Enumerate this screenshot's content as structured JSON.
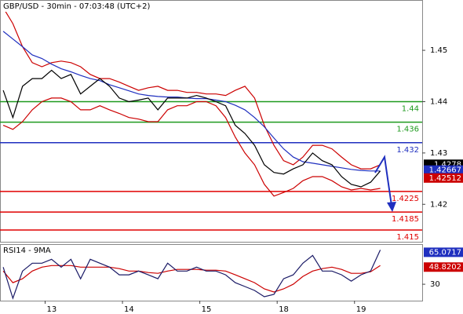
{
  "chart_data": [
    {
      "type": "line",
      "title": "GBP/USD - 30min - 07:03:48 (UTC+2)",
      "x": [
        -13,
        -10,
        -7,
        -4,
        -1,
        2,
        5,
        8,
        11,
        14,
        17,
        20,
        23,
        26,
        29,
        32,
        35,
        38,
        41,
        44,
        47,
        50,
        53,
        56,
        59,
        62,
        65,
        68,
        71,
        74,
        77,
        80,
        83,
        86,
        89,
        92,
        95,
        98,
        101,
        104
      ],
      "xlim": [
        -14,
        117
      ],
      "ylim": [
        1.4127,
        1.4598
      ],
      "yticks": [
        1.42,
        1.43,
        1.44,
        1.45
      ],
      "series": [
        {
          "color": "#cc0000",
          "values": [
            1.4583,
            1.4552,
            1.4507,
            1.4476,
            1.4468,
            1.4476,
            1.4479,
            1.4476,
            1.4468,
            1.4453,
            1.4445,
            1.4445,
            1.4438,
            1.443,
            1.4422,
            1.4427,
            1.443,
            1.4422,
            1.4422,
            1.4418,
            1.4418,
            1.4415,
            1.4415,
            1.4412,
            1.4422,
            1.443,
            1.4407,
            1.4354,
            1.4315,
            1.4285,
            1.4277,
            1.4292,
            1.4315,
            1.4315,
            1.4308,
            1.4292,
            1.4277,
            1.4269,
            1.4269,
            1.4277
          ]
        },
        {
          "color": "#cc0000",
          "values": [
            1.4354,
            1.4346,
            1.4361,
            1.4384,
            1.44,
            1.4407,
            1.4407,
            1.44,
            1.4384,
            1.4384,
            1.4392,
            1.4384,
            1.4377,
            1.4369,
            1.4366,
            1.4361,
            1.4361,
            1.4384,
            1.4392,
            1.4392,
            1.44,
            1.44,
            1.4392,
            1.4369,
            1.4331,
            1.43,
            1.4277,
            1.4239,
            1.4216,
            1.4223,
            1.4231,
            1.4246,
            1.4254,
            1.4254,
            1.4246,
            1.4234,
            1.4228,
            1.4231,
            1.4228,
            1.4231
          ]
        },
        {
          "color": "#1f2fbf",
          "values": [
            1.4537,
            1.4522,
            1.4507,
            1.4491,
            1.4484,
            1.4473,
            1.4464,
            1.4458,
            1.4451,
            1.4445,
            1.4441,
            1.4433,
            1.4427,
            1.4421,
            1.4415,
            1.4412,
            1.441,
            1.4409,
            1.4409,
            1.4407,
            1.4406,
            1.4406,
            1.4403,
            1.44,
            1.4393,
            1.4384,
            1.4369,
            1.4351,
            1.4329,
            1.4308,
            1.4292,
            1.4283,
            1.428,
            1.4277,
            1.4274,
            1.4271,
            1.4268,
            1.4266,
            1.4265,
            1.4265
          ]
        },
        {
          "color": "#000000",
          "values": [
            1.4422,
            1.4369,
            1.443,
            1.4445,
            1.4445,
            1.4461,
            1.4445,
            1.4453,
            1.4415,
            1.443,
            1.4445,
            1.443,
            1.4407,
            1.44,
            1.4403,
            1.4407,
            1.4384,
            1.4407,
            1.4407,
            1.4407,
            1.4412,
            1.4407,
            1.44,
            1.4392,
            1.4354,
            1.4338,
            1.4315,
            1.4277,
            1.4262,
            1.4259,
            1.4269,
            1.4277,
            1.43,
            1.4285,
            1.4277,
            1.4254,
            1.4239,
            1.4234,
            1.4243,
            1.4265
          ]
        }
      ],
      "levels": [
        {
          "value": 1.44,
          "color": "#1e9a1e"
        },
        {
          "value": 1.436,
          "color": "#1e9a1e"
        },
        {
          "value": 1.432,
          "color": "#1f2fbf"
        },
        {
          "value": 1.4225,
          "color": "#e00000"
        },
        {
          "value": 1.4185,
          "color": "#e00000"
        },
        {
          "value": 1.415,
          "color": "#e00000"
        }
      ],
      "price_tags": [
        {
          "value": 1.4278,
          "color": "#000000"
        },
        {
          "value": 1.42667,
          "color": "#1f2fbf"
        },
        {
          "value": 1.42512,
          "color": "#cc0000"
        }
      ]
    },
    {
      "type": "line",
      "title": "RSI14 - 9MA",
      "x": [
        -13,
        -10,
        -7,
        -4,
        -1,
        2,
        5,
        8,
        11,
        14,
        17,
        20,
        23,
        26,
        29,
        32,
        35,
        38,
        41,
        44,
        47,
        50,
        53,
        56,
        59,
        62,
        65,
        68,
        71,
        74,
        77,
        80,
        83,
        86,
        89,
        92,
        95,
        98,
        101,
        104
      ],
      "xlim": [
        -14,
        117
      ],
      "ylim": [
        12,
        74
      ],
      "yticks": [
        30
      ],
      "xticks": [
        {
          "value": 0,
          "label": "13"
        },
        {
          "value": 24,
          "label": "14"
        },
        {
          "value": 48,
          "label": "15"
        },
        {
          "value": 72,
          "label": "18"
        },
        {
          "value": 96,
          "label": "19"
        }
      ],
      "series": [
        {
          "color": "#cc0000",
          "values": [
            44.5,
            31.7,
            36.0,
            44.5,
            48.8,
            50.5,
            50.5,
            50.5,
            48.8,
            48.8,
            48.8,
            48.8,
            47.1,
            44.5,
            44.5,
            42.8,
            42.0,
            44.5,
            46.3,
            46.3,
            46.3,
            45.4,
            45.4,
            44.5,
            40.3,
            36.0,
            31.7,
            24.9,
            21.5,
            24.9,
            30.0,
            38.6,
            44.5,
            47.1,
            48.8,
            46.3,
            42.0,
            42.0,
            43.7,
            50.5
          ]
        },
        {
          "color": "#1a1a66",
          "values": [
            48.8,
            14.6,
            44.5,
            53.1,
            53.1,
            57.4,
            48.8,
            57.4,
            36.0,
            57.4,
            53.1,
            48.8,
            40.3,
            40.3,
            44.5,
            40.3,
            36.0,
            53.1,
            44.5,
            44.5,
            48.8,
            44.5,
            44.5,
            40.3,
            31.7,
            27.5,
            23.2,
            16.3,
            18.9,
            36.0,
            40.3,
            53.1,
            61.6,
            44.5,
            44.5,
            40.3,
            33.4,
            40.3,
            44.5,
            67.6
          ]
        }
      ],
      "price_tags": [
        {
          "value": 65.0717,
          "color": "#1f2fbf"
        },
        {
          "value": 48.8202,
          "color": "#cc0000"
        }
      ]
    }
  ]
}
